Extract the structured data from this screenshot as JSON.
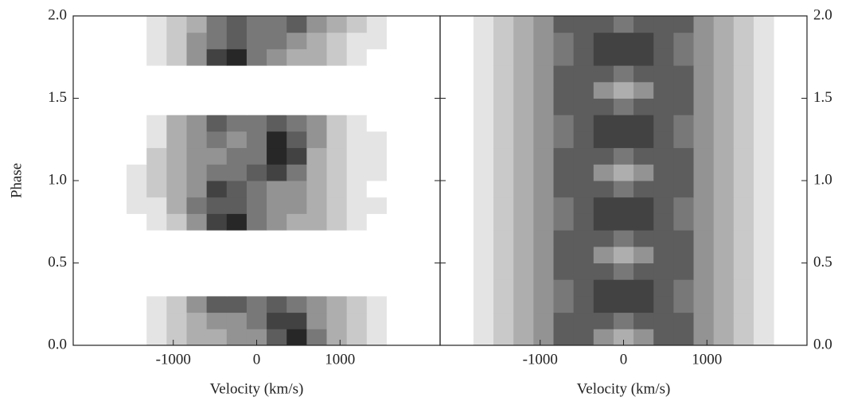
{
  "chart_data": [
    {
      "type": "heatmap",
      "xlabel": "Velocity (km/s)",
      "ylabel": "Phase",
      "y_axis_side": "left",
      "xlim": [
        -2200,
        2200
      ],
      "xticks": [
        -1000,
        0,
        1000
      ],
      "ylim": [
        0,
        2
      ],
      "yticks": [
        {
          "value": 0,
          "label": "0.0"
        },
        {
          "value": 0.5,
          "label": "0.5"
        },
        {
          "value": 1,
          "label": "1.0"
        },
        {
          "value": 1.5,
          "label": "1.5"
        },
        {
          "value": 2,
          "label": "2.0"
        }
      ],
      "x_bins": [
        -1800,
        -1560,
        -1320,
        -1080,
        -840,
        -600,
        -360,
        -120,
        120,
        360,
        600,
        840,
        1080,
        1320,
        1560,
        1800
      ],
      "y_bins": [
        0,
        0.1,
        0.2,
        0.3,
        0.4,
        0.5,
        0.6,
        0.7,
        0.8,
        0.9,
        1,
        1.1,
        1.2,
        1.3,
        1.4,
        1.5,
        1.6,
        1.7,
        1.8,
        1.9,
        2
      ],
      "z": [
        [
          0,
          0,
          1,
          2,
          3,
          3,
          4,
          4,
          6,
          8,
          5,
          3,
          2,
          1,
          0
        ],
        [
          0,
          0,
          1,
          2,
          3,
          4,
          4,
          5,
          7,
          7,
          4,
          3,
          2,
          1,
          0
        ],
        [
          0,
          0,
          1,
          2,
          4,
          6,
          6,
          5,
          6,
          5,
          4,
          3,
          2,
          1,
          0
        ],
        [
          0,
          0,
          0,
          0,
          0,
          0,
          0,
          0,
          0,
          0,
          0,
          0,
          0,
          0,
          0
        ],
        [
          0,
          0,
          0,
          0,
          0,
          0,
          0,
          0,
          0,
          0,
          0,
          0,
          0,
          0,
          0
        ],
        [
          0,
          0,
          0,
          0,
          0,
          0,
          0,
          0,
          0,
          0,
          0,
          0,
          0,
          0,
          0
        ],
        [
          0,
          0,
          0,
          0,
          0,
          0,
          0,
          0,
          0,
          0,
          0,
          0,
          0,
          0,
          0
        ],
        [
          0,
          0,
          1,
          2,
          4,
          7,
          8,
          5,
          4,
          3,
          3,
          2,
          1,
          0,
          0
        ],
        [
          0,
          1,
          1,
          3,
          5,
          6,
          6,
          5,
          4,
          4,
          3,
          2,
          1,
          1,
          0
        ],
        [
          0,
          1,
          2,
          3,
          4,
          7,
          6,
          5,
          4,
          4,
          3,
          2,
          1,
          0,
          0
        ],
        [
          0,
          1,
          2,
          3,
          4,
          5,
          5,
          6,
          7,
          5,
          3,
          2,
          1,
          1,
          0
        ],
        [
          0,
          0,
          2,
          3,
          4,
          4,
          5,
          5,
          8,
          7,
          3,
          2,
          1,
          1,
          0
        ],
        [
          0,
          0,
          1,
          3,
          4,
          5,
          4,
          5,
          8,
          6,
          4,
          2,
          1,
          1,
          0
        ],
        [
          0,
          0,
          1,
          3,
          4,
          6,
          5,
          5,
          6,
          5,
          4,
          2,
          1,
          0,
          0
        ],
        [
          0,
          0,
          0,
          0,
          0,
          0,
          0,
          0,
          0,
          0,
          0,
          0,
          0,
          0,
          0
        ],
        [
          0,
          0,
          0,
          0,
          0,
          0,
          0,
          0,
          0,
          0,
          0,
          0,
          0,
          0,
          0
        ],
        [
          0,
          0,
          0,
          0,
          0,
          0,
          0,
          0,
          0,
          0,
          0,
          0,
          0,
          0,
          0
        ],
        [
          0,
          0,
          1,
          2,
          4,
          7,
          8,
          5,
          4,
          3,
          3,
          2,
          1,
          0,
          0
        ],
        [
          0,
          0,
          1,
          2,
          4,
          5,
          6,
          5,
          5,
          4,
          3,
          2,
          1,
          1,
          0
        ],
        [
          0,
          0,
          1,
          2,
          3,
          5,
          6,
          5,
          5,
          6,
          4,
          3,
          2,
          1,
          0
        ]
      ]
    },
    {
      "type": "heatmap",
      "xlabel": "Velocity (km/s)",
      "y_axis_side": "right",
      "xlim": [
        -2200,
        2200
      ],
      "xticks": [
        -1000,
        0,
        1000
      ],
      "ylim": [
        0,
        2
      ],
      "yticks": [
        {
          "value": 0,
          "label": "0.0"
        },
        {
          "value": 0.5,
          "label": "0.5"
        },
        {
          "value": 1,
          "label": "1.0"
        },
        {
          "value": 1.5,
          "label": "1.5"
        },
        {
          "value": 2,
          "label": "2.0"
        }
      ],
      "x_bins": [
        -1800,
        -1560,
        -1320,
        -1080,
        -840,
        -600,
        -360,
        -120,
        120,
        360,
        600,
        840,
        1080,
        1320,
        1560,
        1800
      ],
      "y_bins": [
        0,
        0.1,
        0.2,
        0.3,
        0.4,
        0.5,
        0.6,
        0.7,
        0.8,
        0.9,
        1,
        1.1,
        1.2,
        1.3,
        1.4,
        1.5,
        1.6,
        1.7,
        1.8,
        1.9,
        2
      ],
      "z": [
        [
          1,
          2,
          3,
          4,
          6,
          6,
          4,
          3,
          4,
          6,
          6,
          4,
          3,
          2,
          1
        ],
        [
          1,
          2,
          3,
          4,
          6,
          6,
          6,
          5,
          6,
          6,
          6,
          4,
          3,
          2,
          1
        ],
        [
          1,
          2,
          3,
          4,
          5,
          6,
          7,
          7,
          7,
          6,
          5,
          4,
          3,
          2,
          1
        ],
        [
          1,
          2,
          3,
          4,
          5,
          6,
          7,
          7,
          7,
          6,
          5,
          4,
          3,
          2,
          1
        ],
        [
          1,
          2,
          3,
          4,
          6,
          6,
          6,
          5,
          6,
          6,
          6,
          4,
          3,
          2,
          1
        ],
        [
          1,
          2,
          3,
          4,
          6,
          6,
          4,
          3,
          4,
          6,
          6,
          4,
          3,
          2,
          1
        ],
        [
          1,
          2,
          3,
          4,
          6,
          6,
          6,
          5,
          6,
          6,
          6,
          4,
          3,
          2,
          1
        ],
        [
          1,
          2,
          3,
          4,
          5,
          6,
          7,
          7,
          7,
          6,
          5,
          4,
          3,
          2,
          1
        ],
        [
          1,
          2,
          3,
          4,
          5,
          6,
          7,
          7,
          7,
          6,
          5,
          4,
          3,
          2,
          1
        ],
        [
          1,
          2,
          3,
          4,
          6,
          6,
          6,
          5,
          6,
          6,
          6,
          4,
          3,
          2,
          1
        ],
        [
          1,
          2,
          3,
          4,
          6,
          6,
          4,
          3,
          4,
          6,
          6,
          4,
          3,
          2,
          1
        ],
        [
          1,
          2,
          3,
          4,
          6,
          6,
          6,
          5,
          6,
          6,
          6,
          4,
          3,
          2,
          1
        ],
        [
          1,
          2,
          3,
          4,
          5,
          6,
          7,
          7,
          7,
          6,
          5,
          4,
          3,
          2,
          1
        ],
        [
          1,
          2,
          3,
          4,
          5,
          6,
          7,
          7,
          7,
          6,
          5,
          4,
          3,
          2,
          1
        ],
        [
          1,
          2,
          3,
          4,
          6,
          6,
          6,
          5,
          6,
          6,
          6,
          4,
          3,
          2,
          1
        ],
        [
          1,
          2,
          3,
          4,
          6,
          6,
          4,
          3,
          4,
          6,
          6,
          4,
          3,
          2,
          1
        ],
        [
          1,
          2,
          3,
          4,
          6,
          6,
          6,
          5,
          6,
          6,
          6,
          4,
          3,
          2,
          1
        ],
        [
          1,
          2,
          3,
          4,
          5,
          6,
          7,
          7,
          7,
          6,
          5,
          4,
          3,
          2,
          1
        ],
        [
          1,
          2,
          3,
          4,
          5,
          6,
          7,
          7,
          7,
          6,
          5,
          4,
          3,
          2,
          1
        ],
        [
          1,
          2,
          3,
          4,
          6,
          6,
          6,
          5,
          6,
          6,
          6,
          4,
          3,
          2,
          1
        ]
      ]
    }
  ]
}
